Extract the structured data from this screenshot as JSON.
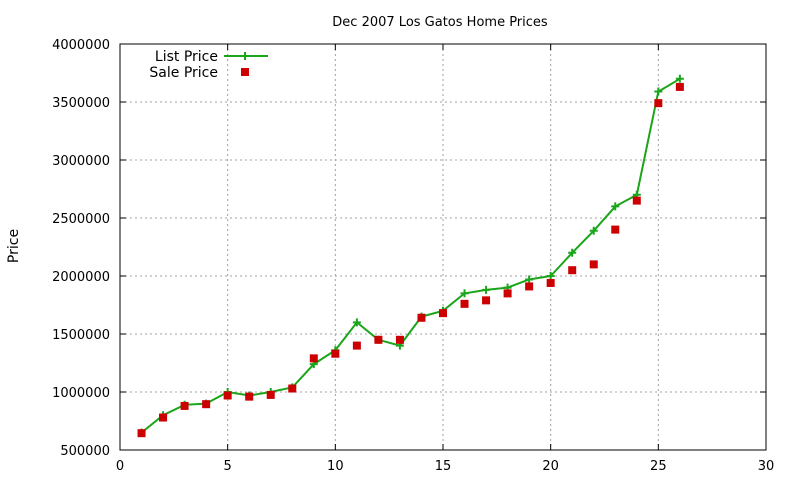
{
  "chart_data": {
    "type": "line",
    "title": "Dec 2007 Los Gatos Home Prices",
    "xlabel": "",
    "ylabel": "Price",
    "xlim": [
      0,
      30
    ],
    "ylim": [
      500000,
      4000000
    ],
    "x_ticks": [
      0,
      5,
      10,
      15,
      20,
      25,
      30
    ],
    "y_ticks": [
      500000,
      1000000,
      1500000,
      2000000,
      2500000,
      3000000,
      3500000,
      4000000
    ],
    "grid": true,
    "legend_position": "top-left",
    "series": [
      {
        "name": "List Price",
        "style": "line+cross",
        "color": "#1aa51a",
        "x": [
          1,
          2,
          3,
          4,
          5,
          6,
          7,
          8,
          9,
          10,
          11,
          12,
          13,
          14,
          15,
          16,
          17,
          18,
          19,
          20,
          21,
          22,
          23,
          24,
          25,
          26
        ],
        "y": [
          650000,
          800000,
          890000,
          900000,
          1000000,
          970000,
          1000000,
          1040000,
          1240000,
          1360000,
          1600000,
          1450000,
          1400000,
          1650000,
          1700000,
          1850000,
          1880000,
          1900000,
          1970000,
          2000000,
          2200000,
          2390000,
          2600000,
          2700000,
          3590000,
          3700000
        ]
      },
      {
        "name": "Sale Price",
        "style": "square",
        "color": "#cc0000",
        "x": [
          1,
          2,
          3,
          4,
          5,
          6,
          7,
          8,
          9,
          10,
          11,
          12,
          13,
          14,
          15,
          16,
          17,
          18,
          19,
          20,
          21,
          22,
          23,
          24,
          25,
          26
        ],
        "y": [
          645000,
          780000,
          880000,
          895000,
          970000,
          960000,
          975000,
          1030000,
          1290000,
          1330000,
          1400000,
          1450000,
          1450000,
          1640000,
          1680000,
          1760000,
          1790000,
          1850000,
          1910000,
          1940000,
          2050000,
          2100000,
          2400000,
          2650000,
          3490000,
          3630000
        ]
      }
    ]
  }
}
